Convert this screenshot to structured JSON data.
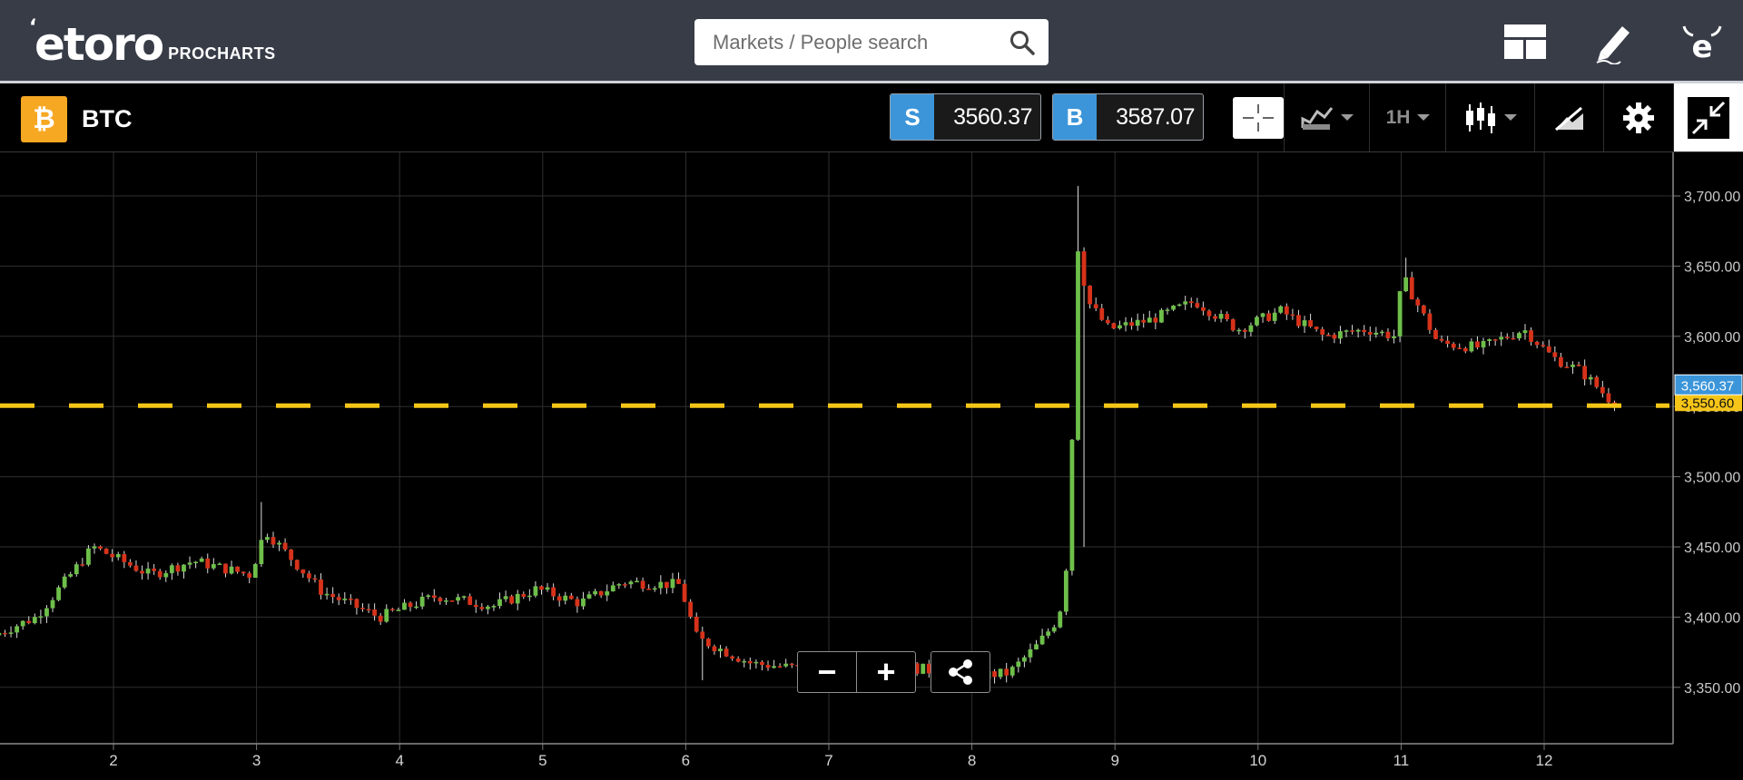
{
  "header": {
    "logo_text": "etoro",
    "logo_sub": "PROCHARTS",
    "search_placeholder": "Markets / People search",
    "icons": [
      "layout-icon",
      "pencil-icon",
      "etoro-user-icon"
    ]
  },
  "instrument": {
    "symbol": "BTC",
    "badge_symbol": "₿",
    "sell_tag": "S",
    "sell_price": "3560.37",
    "buy_tag": "B",
    "buy_price": "3587.07",
    "interval": "1H"
  },
  "colors": {
    "up_candle": "#6ebf4a",
    "down_candle": "#d7321a",
    "price_line": "#f5c518",
    "sell_tag": "#3c95d9",
    "btc_badge": "#f7a823"
  },
  "chart_data": {
    "type": "candlestick",
    "symbol": "BTC",
    "x_tick_labels": [
      "2",
      "3",
      "4",
      "5",
      "6",
      "7",
      "8",
      "9",
      "10",
      "11",
      "12"
    ],
    "y_tick_labels": [
      "3,700.00",
      "3,650.00",
      "3,600.00",
      "3,550.00",
      "3,500.00",
      "3,450.00",
      "3,400.00",
      "3,350.00"
    ],
    "ylim": [
      3310,
      3730
    ],
    "xlim": [
      1.2,
      13.0
    ],
    "current_price_label": "3,560.37",
    "price_line_label": "3,550.60",
    "price_line_value": 3550.6,
    "grid": true,
    "close_series": {
      "x": [
        1.2,
        1.5,
        1.9,
        2.3,
        2.6,
        3.0,
        3.1,
        3.5,
        3.9,
        4.3,
        4.7,
        5.0,
        5.3,
        5.6,
        6.0,
        6.12,
        6.5,
        7.0,
        7.5,
        8.0,
        8.3,
        8.5,
        8.65,
        8.72,
        8.78,
        8.85,
        9.0,
        9.3,
        9.6,
        9.9,
        10.2,
        10.5,
        10.8,
        11.0,
        11.05,
        11.3,
        11.6,
        11.9,
        12.1,
        12.3,
        12.5
      ],
      "y": [
        3387,
        3400,
        3450,
        3430,
        3440,
        3430,
        3462,
        3418,
        3400,
        3415,
        3408,
        3420,
        3410,
        3425,
        3423,
        3385,
        3367,
        3362,
        3366,
        3358,
        3360,
        3380,
        3400,
        3450,
        3665,
        3625,
        3605,
        3612,
        3625,
        3605,
        3618,
        3600,
        3605,
        3600,
        3643,
        3595,
        3592,
        3605,
        3585,
        3575,
        3555
      ]
    }
  },
  "chart_controls": {
    "zoom_out": "−",
    "zoom_in": "+"
  }
}
